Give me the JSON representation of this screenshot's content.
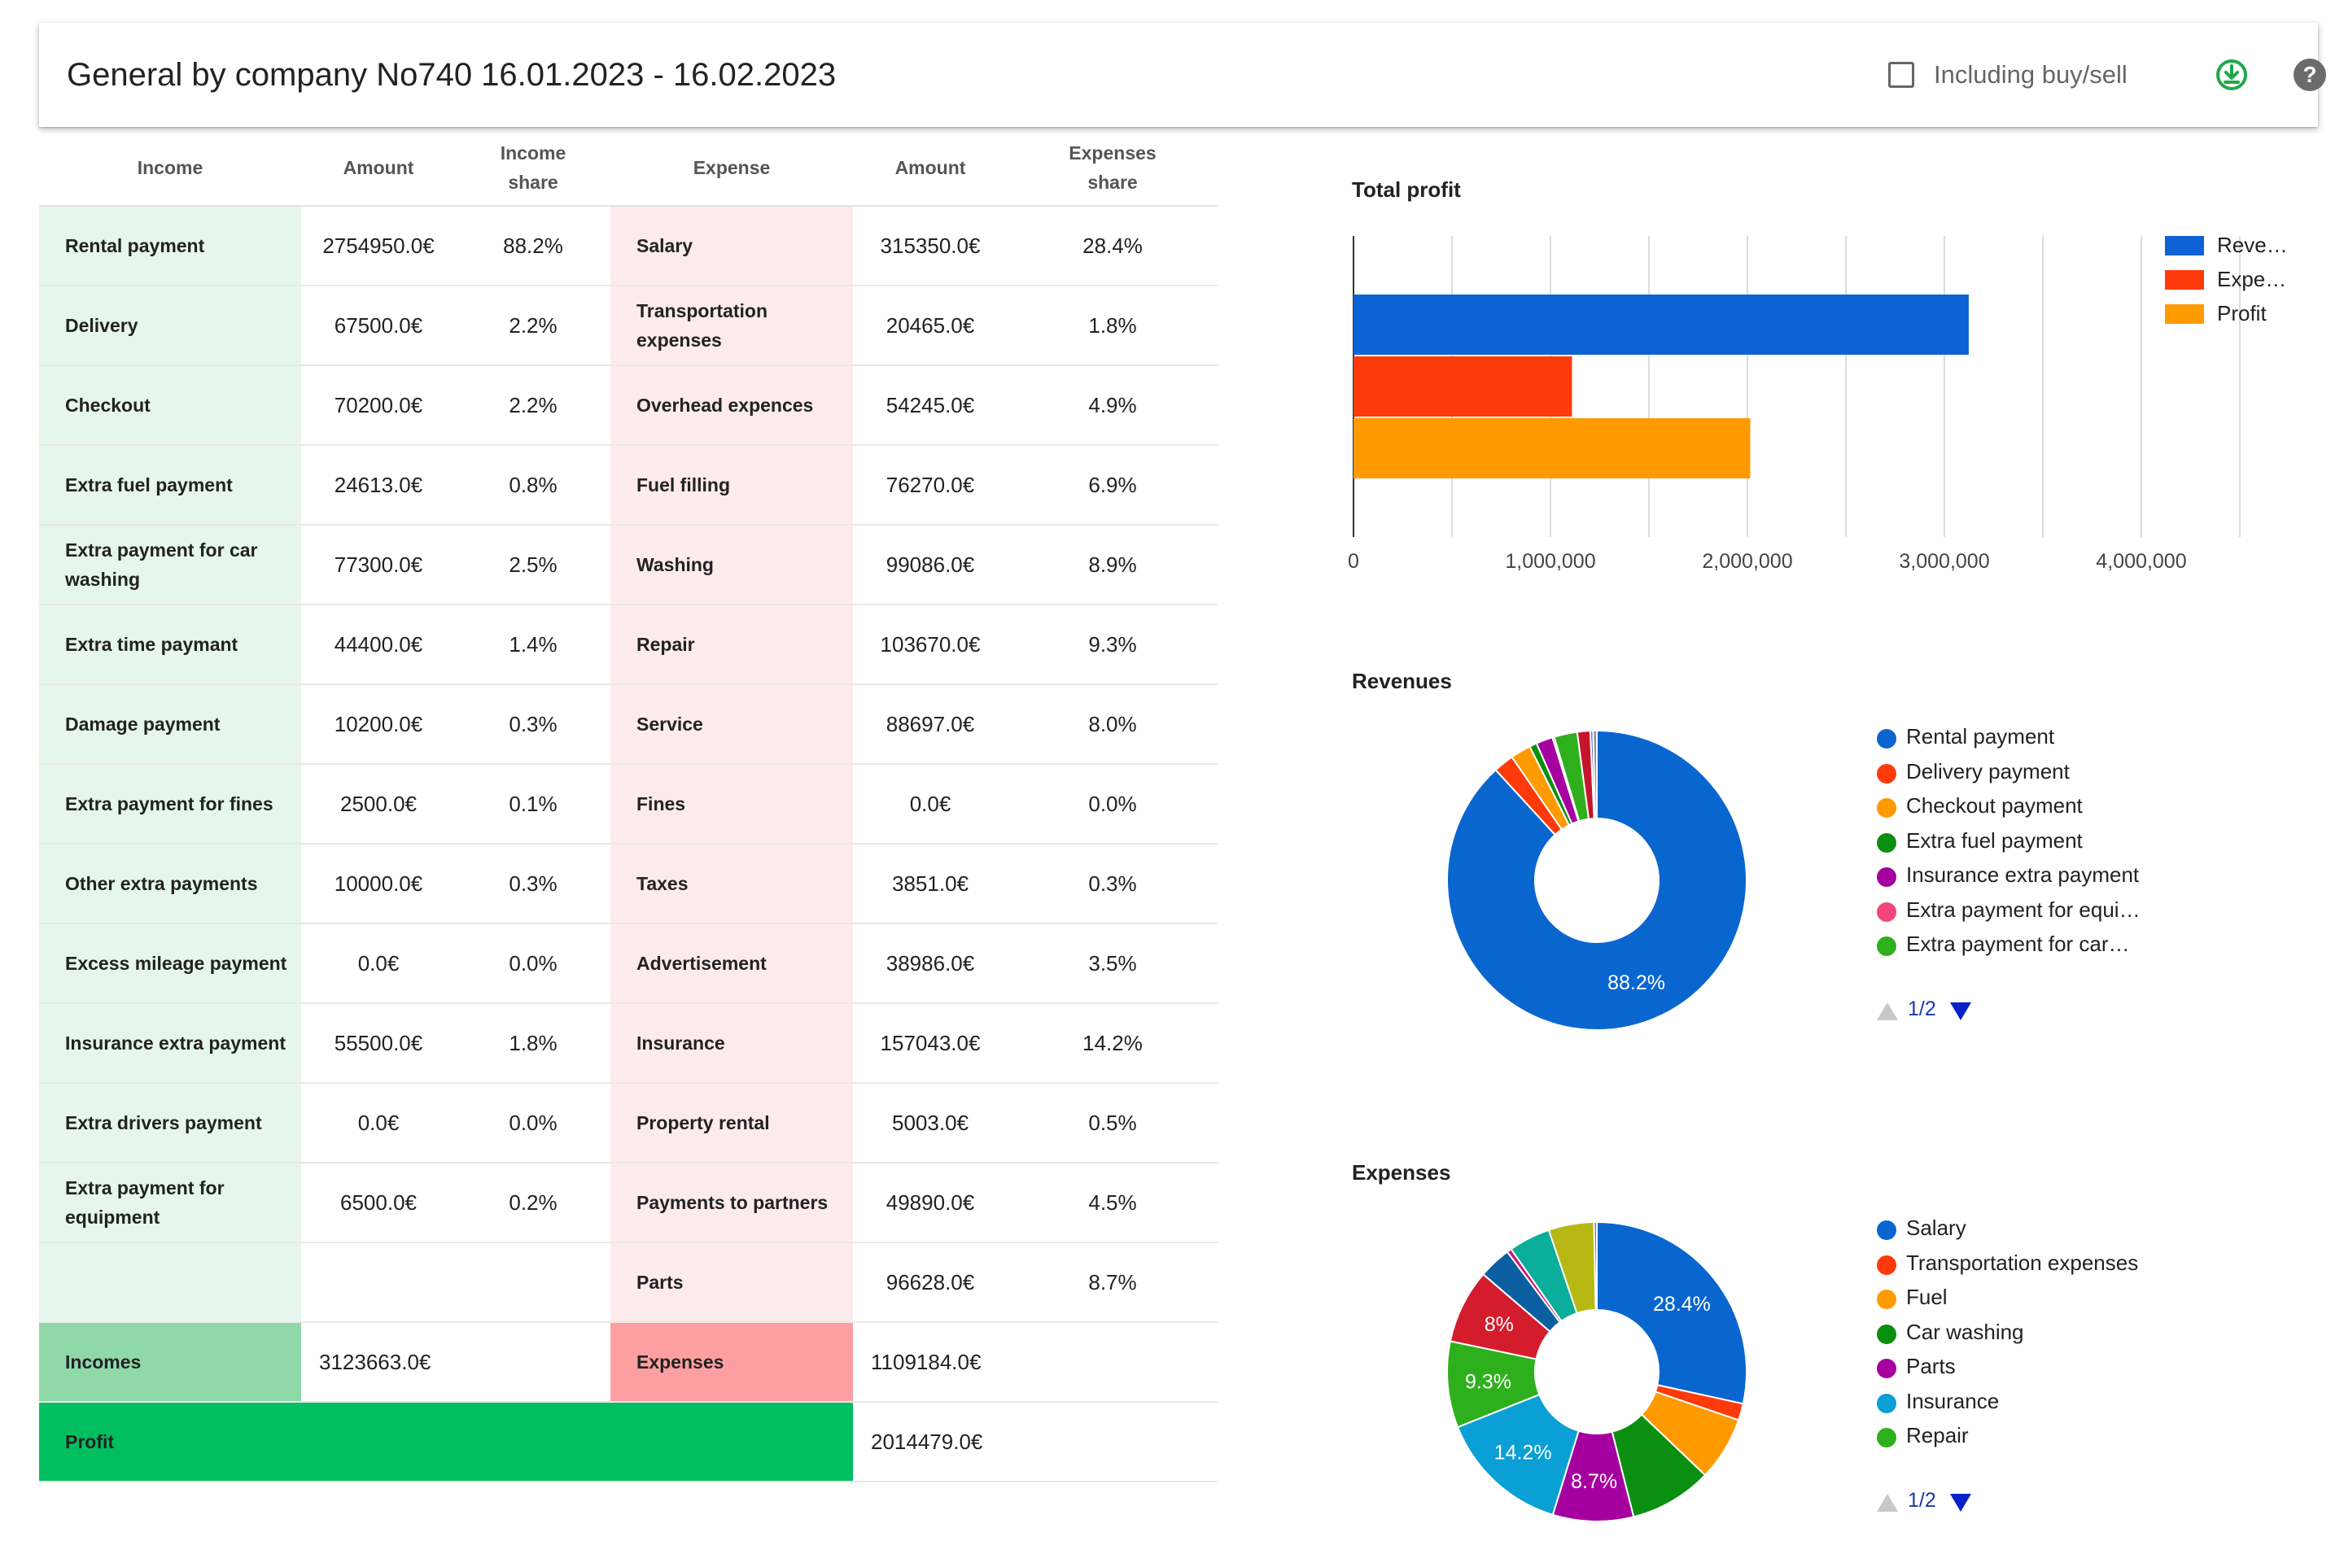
{
  "header": {
    "title": "General by company No740 16.01.2023 - 16.02.2023",
    "checkbox_label": "Including buy/sell",
    "download_icon": "download-icon",
    "help_icon": "help-icon"
  },
  "table": {
    "headers": {
      "income": "Income",
      "amount": "Amount",
      "income_share_1": "Income",
      "income_share_2": "share",
      "expense": "Expense",
      "amount2": "Amount",
      "expenses_share_1": "Expenses",
      "expenses_share_2": "share"
    },
    "rows": [
      {
        "income": "Rental payment",
        "income_amount": "2754950.0€",
        "income_share": "88.2%",
        "expense": "Salary",
        "expense_amount": "315350.0€",
        "expense_share": "28.4%"
      },
      {
        "income": "Delivery",
        "income_amount": "67500.0€",
        "income_share": "2.2%",
        "expense": "Transportation expenses",
        "expense_amount": "20465.0€",
        "expense_share": "1.8%"
      },
      {
        "income": "Checkout",
        "income_amount": "70200.0€",
        "income_share": "2.2%",
        "expense": "Overhead expences",
        "expense_amount": "54245.0€",
        "expense_share": "4.9%"
      },
      {
        "income": "Extra fuel payment",
        "income_amount": "24613.0€",
        "income_share": "0.8%",
        "expense": "Fuel filling",
        "expense_amount": "76270.0€",
        "expense_share": "6.9%"
      },
      {
        "income": "Extra payment for car washing",
        "income_amount": "77300.0€",
        "income_share": "2.5%",
        "expense": "Washing",
        "expense_amount": "99086.0€",
        "expense_share": "8.9%"
      },
      {
        "income": "Extra time paymant",
        "income_amount": "44400.0€",
        "income_share": "1.4%",
        "expense": "Repair",
        "expense_amount": "103670.0€",
        "expense_share": "9.3%"
      },
      {
        "income": "Damage payment",
        "income_amount": "10200.0€",
        "income_share": "0.3%",
        "expense": "Service",
        "expense_amount": "88697.0€",
        "expense_share": "8.0%"
      },
      {
        "income": "Extra payment for fines",
        "income_amount": "2500.0€",
        "income_share": "0.1%",
        "expense": "Fines",
        "expense_amount": "0.0€",
        "expense_share": "0.0%"
      },
      {
        "income": "Other extra payments",
        "income_amount": "10000.0€",
        "income_share": "0.3%",
        "expense": "Taxes",
        "expense_amount": "3851.0€",
        "expense_share": "0.3%"
      },
      {
        "income": "Excess mileage payment",
        "income_amount": "0.0€",
        "income_share": "0.0%",
        "expense": "Advertisement",
        "expense_amount": "38986.0€",
        "expense_share": "3.5%"
      },
      {
        "income": "Insurance extra payment",
        "income_amount": "55500.0€",
        "income_share": "1.8%",
        "expense": "Insurance",
        "expense_amount": "157043.0€",
        "expense_share": "14.2%"
      },
      {
        "income": "Extra drivers payment",
        "income_amount": "0.0€",
        "income_share": "0.0%",
        "expense": "Property rental",
        "expense_amount": "5003.0€",
        "expense_share": "0.5%"
      },
      {
        "income": "Extra payment for equipment",
        "income_amount": "6500.0€",
        "income_share": "0.2%",
        "expense": "Payments to partners",
        "expense_amount": "49890.0€",
        "expense_share": "4.5%"
      },
      {
        "income": "",
        "income_amount": "",
        "income_share": "",
        "expense": "Parts",
        "expense_amount": "96628.0€",
        "expense_share": "8.7%"
      }
    ],
    "totals": {
      "incomes_label": "Incomes",
      "incomes_amount": "3123663.0€",
      "expenses_label": "Expenses",
      "expenses_amount": "1109184.0€",
      "profit_label": "Profit",
      "profit_amount": "2014479.0€"
    }
  },
  "chart_data": [
    {
      "type": "bar",
      "title": "Total profit",
      "orientation": "horizontal",
      "categories": [
        "Reve…",
        "Expe…",
        "Profit"
      ],
      "values": [
        3123663,
        1109184,
        2014479
      ],
      "colors": [
        "#0d63d6",
        "#ff3a0a",
        "#ff9a00"
      ],
      "xlim": [
        0,
        4500000
      ],
      "x_ticks": [
        "0",
        "1,000,000",
        "2,000,000",
        "3,000,000",
        "4,000,000"
      ],
      "x_tick_values": [
        0,
        1000000,
        2000000,
        3000000,
        4000000
      ],
      "grid": true,
      "legend_position": "right"
    },
    {
      "type": "pie",
      "title": "Revenues",
      "donut": true,
      "slices": [
        {
          "name": "Rental payment",
          "value": 88.2,
          "color": "#0a66cf"
        },
        {
          "name": "Delivery payment",
          "value": 2.2,
          "color": "#ff3a0a"
        },
        {
          "name": "Checkout payment",
          "value": 2.2,
          "color": "#ff9a00"
        },
        {
          "name": "Extra fuel payment",
          "value": 0.8,
          "color": "#0b8f10"
        },
        {
          "name": "Insurance extra payment",
          "value": 1.8,
          "color": "#a5009f"
        },
        {
          "name": "Extra payment for equi…",
          "value": 0.2,
          "color": "#f2467a"
        },
        {
          "name": "Extra payment for car…",
          "value": 2.5,
          "color": "#2eb01c"
        },
        {
          "name": "Extra time paymant",
          "value": 1.4,
          "color": "#c4152b"
        },
        {
          "name": "Damage payment",
          "value": 0.3,
          "color": "#5a6ed6"
        },
        {
          "name": "Other extra payments",
          "value": 0.4,
          "color": "#8f8f8f"
        }
      ],
      "slice_labels": [
        {
          "index": 0,
          "text": "88.2%"
        }
      ],
      "legend_visible": [
        "Rental payment",
        "Delivery payment",
        "Checkout payment",
        "Extra fuel payment",
        "Insurance extra payment",
        "Extra payment for equi…",
        "Extra payment for car…"
      ],
      "pager": "1/2"
    },
    {
      "type": "pie",
      "title": "Expenses",
      "donut": true,
      "slices": [
        {
          "name": "Salary",
          "value": 28.4,
          "color": "#0a66cf"
        },
        {
          "name": "Transportation expenses",
          "value": 1.8,
          "color": "#ff3a0a"
        },
        {
          "name": "Fuel",
          "value": 6.9,
          "color": "#ff9a00"
        },
        {
          "name": "Car washing",
          "value": 8.9,
          "color": "#0b8f10"
        },
        {
          "name": "Parts",
          "value": 8.7,
          "color": "#a5009f"
        },
        {
          "name": "Insurance",
          "value": 14.2,
          "color": "#0aa0d6"
        },
        {
          "name": "Repair",
          "value": 9.3,
          "color": "#2eb01c"
        },
        {
          "name": "Service",
          "value": 8.0,
          "color": "#d41c2c"
        },
        {
          "name": "Advertisement",
          "value": 3.5,
          "color": "#0a5fa0"
        },
        {
          "name": "Property rental",
          "value": 0.5,
          "color": "#c41a70"
        },
        {
          "name": "Payments to partners",
          "value": 4.5,
          "color": "#0aae9a"
        },
        {
          "name": "Overhead expences",
          "value": 4.9,
          "color": "#b8b814"
        },
        {
          "name": "Taxes",
          "value": 0.3,
          "color": "#5a6ed6"
        }
      ],
      "slice_labels": [
        {
          "index": 0,
          "text": "28.4%"
        },
        {
          "index": 4,
          "text": "8.7%"
        },
        {
          "index": 5,
          "text": "14.2%"
        },
        {
          "index": 6,
          "text": "9.3%"
        },
        {
          "index": 7,
          "text": "8%"
        }
      ],
      "legend_visible": [
        "Salary",
        "Transportation expenses",
        "Fuel",
        "Car washing",
        "Parts",
        "Insurance",
        "Repair"
      ],
      "pager": "1/2"
    }
  ]
}
